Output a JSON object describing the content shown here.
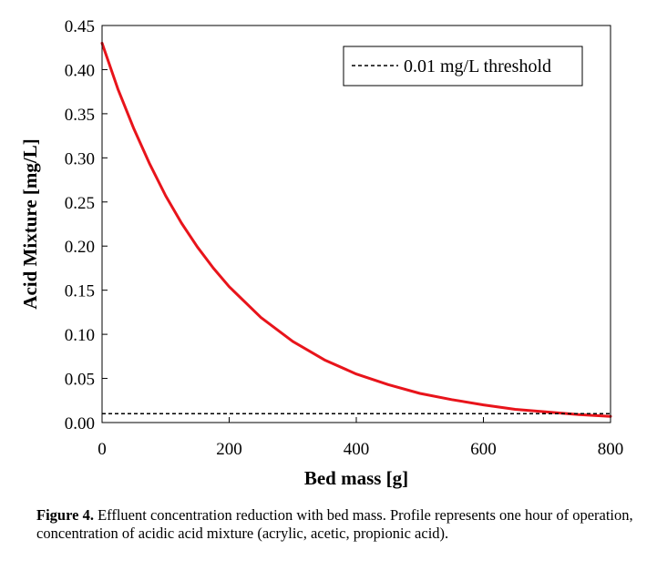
{
  "chart_data": {
    "type": "line",
    "title": "",
    "xlabel": "Bed mass [g]",
    "ylabel": "Acid Mixture [mg/L]",
    "xlim": [
      0,
      800
    ],
    "ylim": [
      0,
      0.45
    ],
    "x_ticks": [
      0,
      200,
      400,
      600,
      800
    ],
    "x_tick_labels": [
      "0",
      "200",
      "400",
      "600",
      "800"
    ],
    "y_ticks": [
      0,
      0.05,
      0.1,
      0.15,
      0.2,
      0.25,
      0.3,
      0.35,
      0.4,
      0.45
    ],
    "y_tick_labels": [
      "0.00",
      "0.05",
      "0.10",
      "0.15",
      "0.20",
      "0.25",
      "0.30",
      "0.35",
      "0.40",
      "0.45"
    ],
    "grid": false,
    "legend_position": "top-right",
    "series": [
      {
        "name": "",
        "color": "#e8141b",
        "style": "solid",
        "x": [
          0,
          25,
          50,
          75,
          100,
          125,
          150,
          175,
          200,
          250,
          300,
          350,
          400,
          450,
          500,
          550,
          600,
          650,
          700,
          750,
          800
        ],
        "y": [
          0.43,
          0.378,
          0.333,
          0.293,
          0.257,
          0.226,
          0.199,
          0.175,
          0.154,
          0.119,
          0.092,
          0.071,
          0.055,
          0.043,
          0.033,
          0.026,
          0.02,
          0.015,
          0.012,
          0.009,
          0.007
        ]
      },
      {
        "name": "0.01 mg/L threshold",
        "color": "#000000",
        "style": "dashed",
        "x": [
          0,
          800
        ],
        "y": [
          0.01,
          0.01
        ]
      }
    ]
  },
  "caption": {
    "label": "Figure 4.",
    "text": " Effluent concentration reduction with bed mass. Profile represents one hour of operation, concentration of acidic acid mixture (acrylic, acetic, propionic acid)."
  }
}
